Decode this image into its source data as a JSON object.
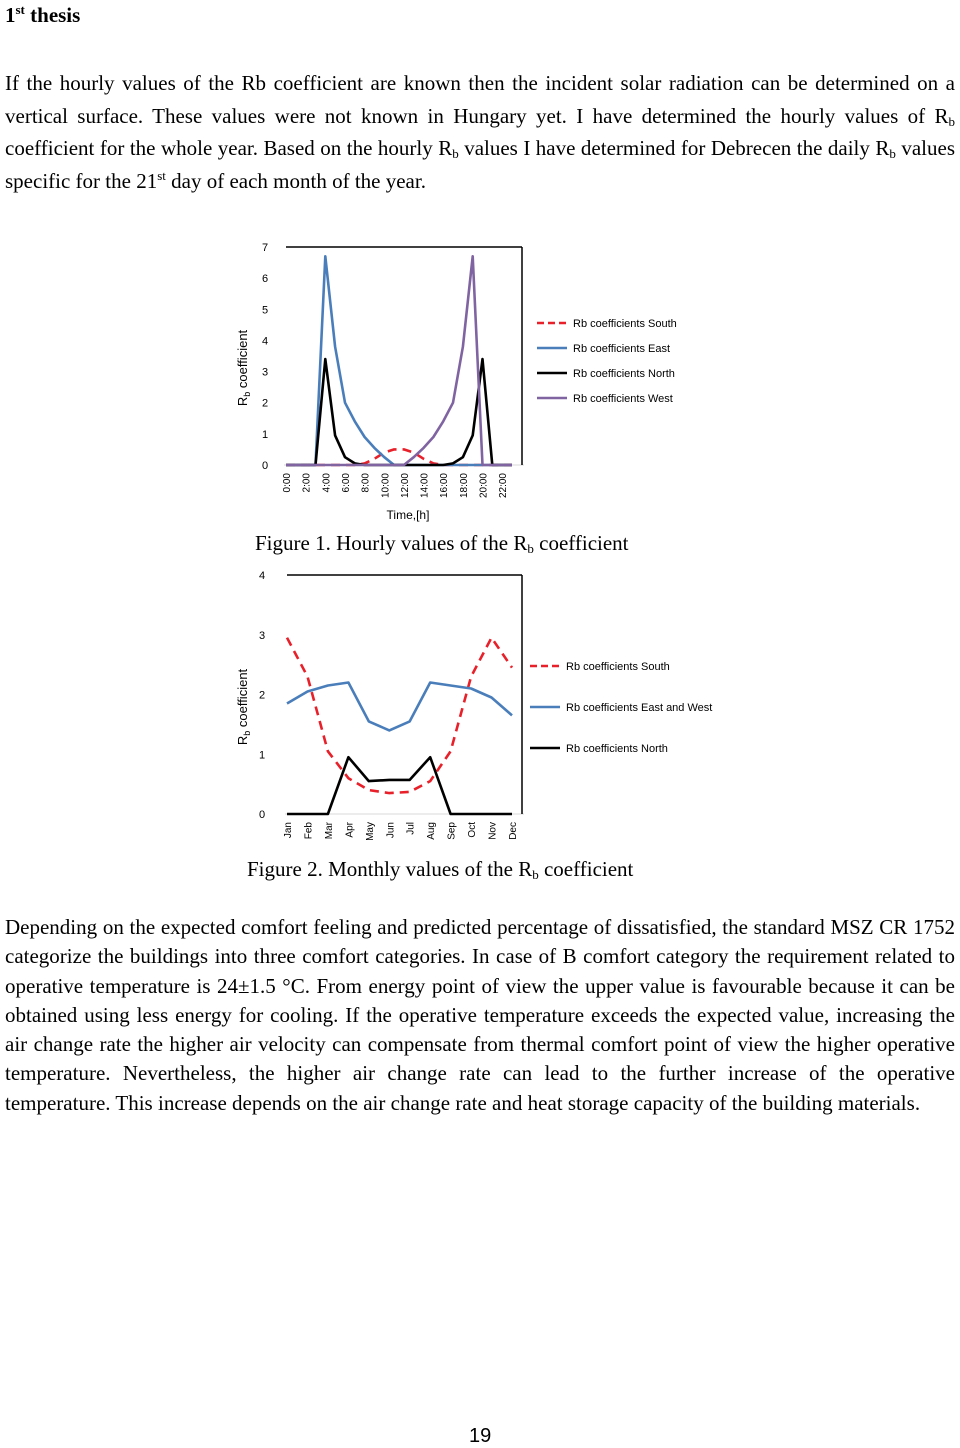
{
  "heading": {
    "number": "1",
    "sup": "st",
    "rest": "thesis"
  },
  "paragraph1": {
    "s1": "If the hourly values of the Rb coefficient are known then the incident solar radiation can be determined on a vertical surface. These values were not known in Hungary yet. I have determined the hourly values of R",
    "s2": " coefficient for the whole year. Based on the hourly R",
    "s3": " values I have determined for Debrecen the daily R",
    "s4": " values specific for the 21",
    "s5": " day of each month of the year.",
    "sub": "b",
    "sup_st": "st"
  },
  "figure1_caption": {
    "pre": "Figure 1. Hourly values of the R",
    "sub": "b",
    "post": " coefficient"
  },
  "figure2_caption": {
    "pre": "Figure 2. Monthly values of the R",
    "sub": "b",
    "post": " coefficient"
  },
  "paragraph2": {
    "text": "Depending on the expected comfort feeling and predicted percentage of dissatisfied, the standard MSZ CR 1752 categorize the buildings into three comfort categories. In case of B comfort category the requirement related to operative temperature is 24±1.5 °C. From energy point of view the upper value is favourable because it can be obtained using less energy for cooling. If the operative temperature exceeds the expected value, increasing the air change rate the higher air velocity can compensate from thermal comfort point of view the higher operative temperature. Nevertheless, the higher air change rate can lead to the further increase of the operative temperature. This increase depends on the air change rate and heat storage capacity of the building materials."
  },
  "page_number": "19",
  "chart_data": [
    {
      "type": "line",
      "ylabel_main": "R",
      "ylabel_sub": "b",
      "ylabel_rest": " coefficient",
      "xlabel": "Time,[h]",
      "ylim": [
        0,
        7
      ],
      "yticks": [
        "0",
        "1",
        "2",
        "3",
        "4",
        "5",
        "6",
        "7"
      ],
      "xticks": [
        "0:00",
        "2:00",
        "4:00",
        "6:00",
        "8:00",
        "10:00",
        "12:00",
        "14:00",
        "16:00",
        "18:00",
        "20:00",
        "22:00"
      ],
      "x": [
        0,
        1,
        2,
        3,
        4,
        5,
        6,
        7,
        8,
        9,
        10,
        11,
        12,
        13,
        14,
        15,
        16,
        17,
        18,
        19,
        20,
        21,
        22,
        23
      ],
      "legend_position": "right",
      "series": [
        {
          "name": "Rb coefficients South",
          "color": "#e8202a",
          "dash": true,
          "values": [
            0,
            0,
            0,
            0,
            0,
            0,
            0,
            0,
            0.05,
            0.2,
            0.4,
            0.5,
            0.5,
            0.4,
            0.2,
            0.05,
            0,
            0,
            0,
            0,
            0,
            0,
            0,
            0
          ]
        },
        {
          "name": "Rb coefficients East",
          "color": "#4a7ebb",
          "dash": false,
          "values": [
            0,
            0,
            0,
            0,
            6.7,
            3.8,
            2.0,
            1.4,
            0.9,
            0.55,
            0.25,
            0,
            0,
            0,
            0,
            0,
            0,
            0,
            0,
            0,
            0,
            0,
            0,
            0
          ]
        },
        {
          "name": "Rb coefficients North",
          "color": "#000000",
          "dash": false,
          "values": [
            0,
            0,
            0,
            0,
            3.4,
            0.95,
            0.25,
            0.05,
            0,
            0,
            0,
            0,
            0,
            0,
            0,
            0,
            0,
            0.05,
            0.25,
            0.95,
            3.4,
            0,
            0,
            0
          ]
        },
        {
          "name": "Rb coefficients West",
          "color": "#8064a2",
          "dash": false,
          "values": [
            0,
            0,
            0,
            0,
            0,
            0,
            0,
            0,
            0,
            0,
            0,
            0,
            0,
            0.25,
            0.55,
            0.9,
            1.4,
            2.0,
            3.8,
            6.7,
            0,
            0,
            0,
            0
          ]
        }
      ]
    },
    {
      "type": "line",
      "ylabel_main": "R",
      "ylabel_sub": "b",
      "ylabel_rest": " coefficient",
      "ylim": [
        0,
        4
      ],
      "yticks": [
        "0",
        "1",
        "2",
        "3",
        "4"
      ],
      "categories": [
        "Jan",
        "Feb",
        "Mar",
        "Apr",
        "May",
        "Jun",
        "Jul",
        "Aug",
        "Sep",
        "Oct",
        "Nov",
        "Dec"
      ],
      "legend_position": "right",
      "series": [
        {
          "name": "Rb coefficients South",
          "color": "#e8202a",
          "dash": true,
          "values": [
            2.95,
            2.3,
            1.05,
            0.6,
            0.4,
            0.35,
            0.37,
            0.55,
            1.05,
            2.3,
            2.95,
            2.45
          ]
        },
        {
          "name": "Rb coefficients East and West",
          "color": "#4a7ebb",
          "dash": false,
          "values": [
            1.85,
            2.05,
            2.15,
            2.2,
            1.55,
            1.4,
            1.55,
            2.2,
            2.15,
            2.1,
            1.95,
            1.65
          ]
        },
        {
          "name": "Rb coefficients North",
          "color": "#000000",
          "dash": false,
          "values": [
            0,
            0,
            0,
            0.95,
            0.55,
            0.57,
            0.57,
            0.95,
            0,
            0,
            0,
            0
          ]
        }
      ]
    }
  ]
}
